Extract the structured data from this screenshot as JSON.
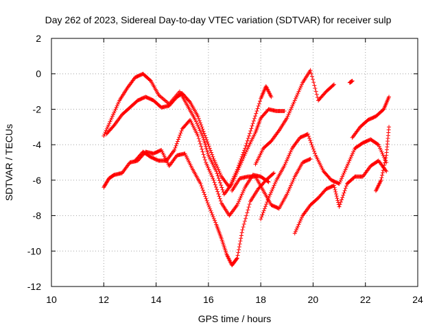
{
  "chart_data": {
    "type": "scatter",
    "title": "Day 262 of 2023, Sidereal Day-to-day VTEC variation (SDTVAR) for receiver sulp",
    "xlabel": "GPS time / hours",
    "ylabel": "SDTVAR / TECUs",
    "xlim": [
      10,
      24
    ],
    "ylim": [
      -12,
      2
    ],
    "xticks": [
      10,
      12,
      14,
      16,
      18,
      20,
      22,
      24
    ],
    "yticks": [
      -12,
      -10,
      -8,
      -6,
      -4,
      -2,
      0,
      2
    ],
    "xtick_labels": [
      "10",
      "12",
      "14",
      "16",
      "18",
      "20",
      "22",
      "24"
    ],
    "ytick_labels": [
      "-12",
      "-10",
      "-8",
      "-6",
      "-4",
      "-2",
      "0",
      "2"
    ],
    "grid": true,
    "legend": false,
    "marker": "+",
    "color": "#ff0000",
    "series": [
      {
        "name": "track-1",
        "x": [
          12.0,
          12.3,
          12.6,
          12.9,
          13.2,
          13.5,
          13.8,
          14.1,
          14.5,
          14.9,
          15.2,
          15.5,
          15.8,
          16.0,
          16.3,
          16.6,
          16.9,
          17.2,
          17.5,
          17.8,
          18.0,
          18.3,
          18.6,
          18.9
        ],
        "y": [
          -3.5,
          -2.5,
          -1.5,
          -0.8,
          -0.2,
          0.0,
          -0.4,
          -1.2,
          -1.7,
          -1.0,
          -1.8,
          -2.6,
          -3.6,
          -4.6,
          -5.5,
          -6.8,
          -6.2,
          -5.2,
          -4.2,
          -3.3,
          -2.5,
          -2.0,
          -2.1,
          -2.1
        ]
      },
      {
        "name": "track-2",
        "x": [
          12.1,
          12.4,
          12.7,
          13.0,
          13.3,
          13.6,
          13.9,
          14.2,
          14.5,
          14.8,
          15.0,
          15.3,
          15.6,
          15.9,
          16.2,
          16.5,
          16.8,
          17.1,
          17.4,
          17.7,
          18.0,
          18.2,
          18.4
        ],
        "y": [
          -3.4,
          -2.9,
          -2.3,
          -1.9,
          -1.5,
          -1.3,
          -1.5,
          -1.9,
          -1.8,
          -1.3,
          -1.1,
          -1.6,
          -2.4,
          -3.6,
          -4.8,
          -5.8,
          -6.4,
          -5.4,
          -4.2,
          -2.8,
          -1.4,
          -0.7,
          -1.3
        ]
      },
      {
        "name": "track-3",
        "x": [
          12.0,
          12.2,
          12.4,
          12.7,
          13.0,
          13.3,
          13.6,
          13.9,
          14.2,
          14.5,
          14.8,
          15.1,
          15.4,
          15.7,
          16.0,
          16.3,
          16.5,
          16.7,
          16.9,
          17.1,
          17.3,
          17.6,
          17.9,
          18.2,
          18.5
        ],
        "y": [
          -6.4,
          -5.9,
          -5.7,
          -5.6,
          -5.0,
          -4.9,
          -4.4,
          -4.5,
          -4.3,
          -5.2,
          -4.6,
          -4.5,
          -5.4,
          -6.2,
          -7.4,
          -8.5,
          -9.3,
          -10.2,
          -10.8,
          -10.4,
          -8.8,
          -7.2,
          -6.5,
          -6.0,
          -5.6
        ]
      },
      {
        "name": "track-4",
        "x": [
          13.2,
          13.5,
          13.8,
          14.1,
          14.4,
          14.7,
          15.0,
          15.3,
          15.6,
          15.9,
          16.2,
          16.5,
          16.8,
          17.1,
          17.4,
          17.7,
          18.0,
          18.3
        ],
        "y": [
          -4.9,
          -4.4,
          -4.7,
          -4.9,
          -4.9,
          -4.3,
          -3.1,
          -2.6,
          -3.5,
          -5.0,
          -6.0,
          -7.3,
          -8.0,
          -7.4,
          -6.4,
          -5.7,
          -5.8,
          -6.1
        ]
      },
      {
        "name": "track-5",
        "x": [
          16.9,
          17.2,
          17.5,
          17.8,
          18.1,
          18.4,
          18.7,
          19.0,
          19.3,
          19.6,
          19.9
        ],
        "y": [
          -6.6,
          -5.9,
          -5.8,
          -5.8,
          -6.6,
          -7.4,
          -7.6,
          -6.8,
          -5.8,
          -5.0,
          -4.8
        ]
      },
      {
        "name": "track-6",
        "x": [
          17.8,
          18.1,
          18.4,
          18.7,
          19.0,
          19.3,
          19.6,
          19.9,
          20.2,
          20.5,
          20.8
        ],
        "y": [
          -5.1,
          -4.2,
          -3.8,
          -3.2,
          -2.5,
          -1.5,
          -0.5,
          0.2,
          -1.5,
          -1.0,
          -0.6
        ]
      },
      {
        "name": "track-7",
        "x": [
          18.0,
          18.3,
          18.6,
          18.9,
          19.2,
          19.5,
          19.8,
          20.1,
          20.4,
          20.7,
          21.0,
          21.3,
          21.6,
          21.9,
          22.2,
          22.5,
          22.8
        ],
        "y": [
          -8.2,
          -7.0,
          -6.0,
          -5.2,
          -4.2,
          -3.6,
          -3.4,
          -4.6,
          -5.5,
          -6.0,
          -6.2,
          -5.2,
          -4.2,
          -3.9,
          -3.7,
          -4.0,
          -5.0
        ]
      },
      {
        "name": "track-8",
        "x": [
          19.3,
          19.6,
          19.9,
          20.2,
          20.5,
          20.8,
          21.0,
          21.3,
          21.6,
          21.9,
          22.2,
          22.5,
          22.8
        ],
        "y": [
          -9.0,
          -8.0,
          -7.4,
          -7.0,
          -6.5,
          -6.3,
          -7.5,
          -6.2,
          -5.8,
          -5.8,
          -5.2,
          -4.9,
          -5.5
        ]
      },
      {
        "name": "track-9",
        "x": [
          21.5,
          21.8,
          22.1,
          22.4,
          22.7,
          22.9
        ],
        "y": [
          -3.6,
          -3.0,
          -2.6,
          -2.4,
          -2.0,
          -1.3
        ]
      },
      {
        "name": "track-10",
        "x": [
          22.4,
          22.6,
          22.8,
          22.9
        ],
        "y": [
          -6.6,
          -6.0,
          -4.6,
          -3.0
        ]
      },
      {
        "name": "track-11",
        "x": [
          21.4,
          21.5
        ],
        "y": [
          -0.5,
          -0.4
        ]
      }
    ]
  }
}
